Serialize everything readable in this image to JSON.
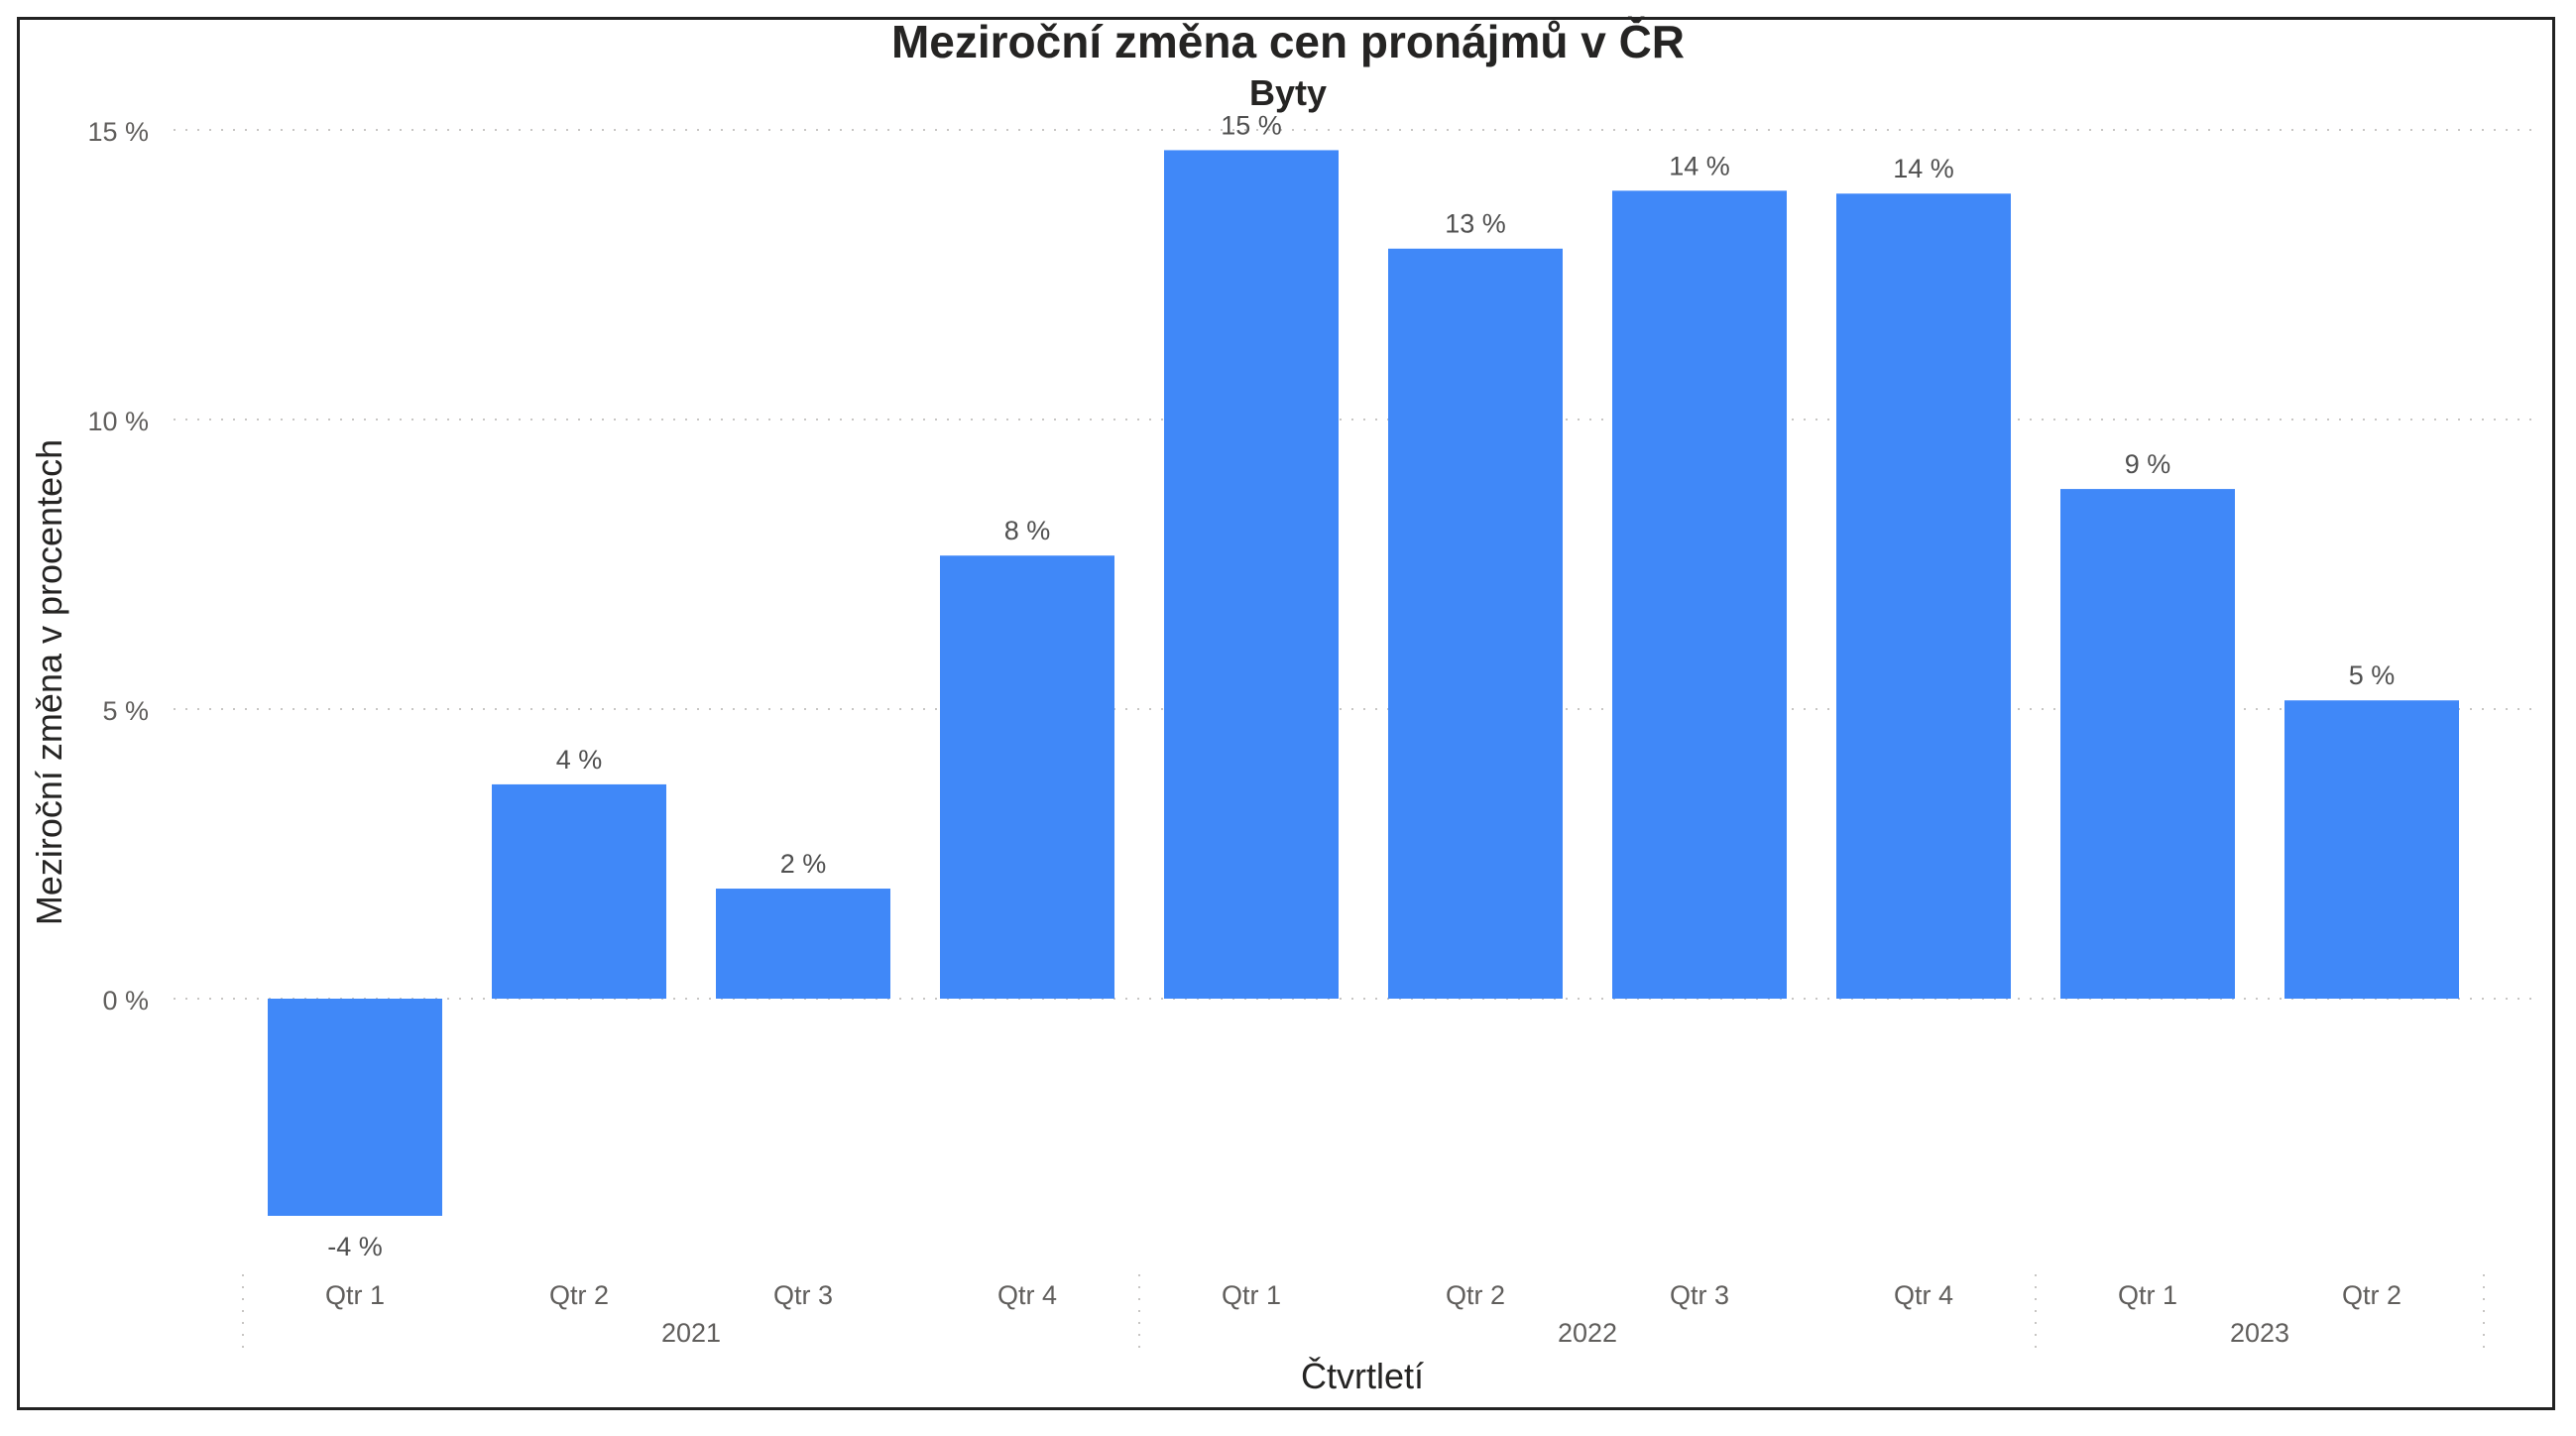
{
  "chart_data": {
    "type": "bar",
    "title": "Meziroční změna cen pronájmů v ČR",
    "subtitle": "Byty",
    "xlabel": "Čtvrtletí",
    "ylabel": "Meziroční změna v procentech",
    "categories": [
      "Qtr 1",
      "Qtr 2",
      "Qtr 3",
      "Qtr 4",
      "Qtr 1",
      "Qtr 2",
      "Qtr 3",
      "Qtr 4",
      "Qtr 1",
      "Qtr 2"
    ],
    "groups": [
      {
        "label": "2021",
        "count": 4
      },
      {
        "label": "2022",
        "count": 4
      },
      {
        "label": "2023",
        "count": 2
      }
    ],
    "values": [
      -3.75,
      3.7,
      1.9,
      7.65,
      14.65,
      12.95,
      13.95,
      13.9,
      8.8,
      5.15
    ],
    "data_labels": [
      "-4 %",
      "4 %",
      "2 %",
      "8 %",
      "15 %",
      "13 %",
      "14 %",
      "14 %",
      "9 %",
      "5 %"
    ],
    "y_ticks": [
      0,
      5,
      10,
      15
    ],
    "y_tick_labels": [
      "0 %",
      "5 %",
      "10 %",
      "15 %"
    ],
    "ylim": [
      -4.6,
      15.5
    ],
    "grid": true,
    "legend": "none",
    "bar_color": "#4088f8"
  }
}
